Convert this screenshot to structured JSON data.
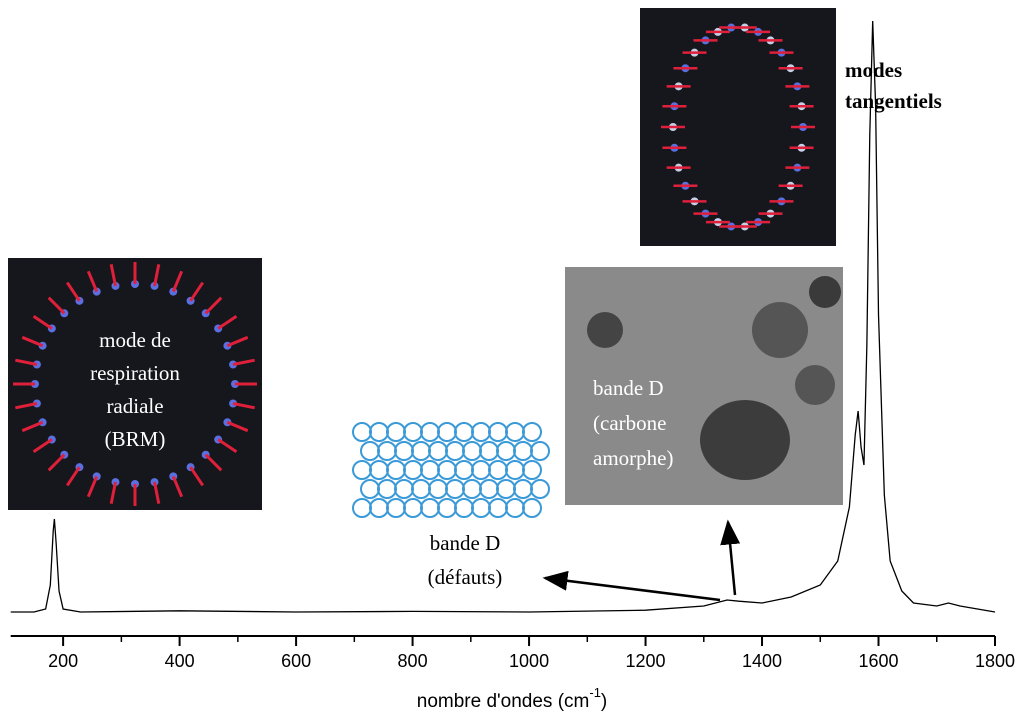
{
  "chart_data": {
    "type": "line",
    "x": [
      110,
      150,
      170,
      178,
      183,
      185,
      188,
      193,
      200,
      230,
      400,
      600,
      800,
      1000,
      1200,
      1300,
      1340,
      1360,
      1400,
      1450,
      1500,
      1530,
      1550,
      1560,
      1565,
      1570,
      1575,
      1580,
      1585,
      1590,
      1595,
      1600,
      1610,
      1620,
      1640,
      1660,
      1700,
      1720,
      1740,
      1800
    ],
    "values": [
      0.5,
      0.5,
      1,
      5,
      14,
      16,
      12,
      4,
      1,
      0.5,
      0.7,
      0.5,
      0.6,
      0.5,
      0.8,
      1.5,
      2.5,
      2.3,
      2,
      3,
      5,
      9,
      18,
      30,
      34,
      28,
      25,
      45,
      80,
      99,
      85,
      50,
      20,
      9,
      4,
      2,
      1.5,
      2,
      1.5,
      0.5
    ],
    "color": "#000000",
    "xlim": [
      110,
      1800
    ],
    "ylim": [
      0,
      100
    ],
    "xticks": [
      200,
      400,
      600,
      800,
      1000,
      1200,
      1400,
      1600,
      1800
    ],
    "xlabel": [
      "nombre d'ondes (cm",
      "-1",
      ")"
    ],
    "annotations": [
      {
        "lines": [
          "modes",
          "tangentiels"
        ]
      },
      {
        "lines": [
          "mode de",
          "respiration",
          "radiale",
          "(BRM)"
        ]
      },
      {
        "lines": [
          "bande D",
          "(défauts)"
        ]
      },
      {
        "lines": [
          "bande D",
          "(carbone",
          "amorphe)"
        ]
      }
    ]
  }
}
